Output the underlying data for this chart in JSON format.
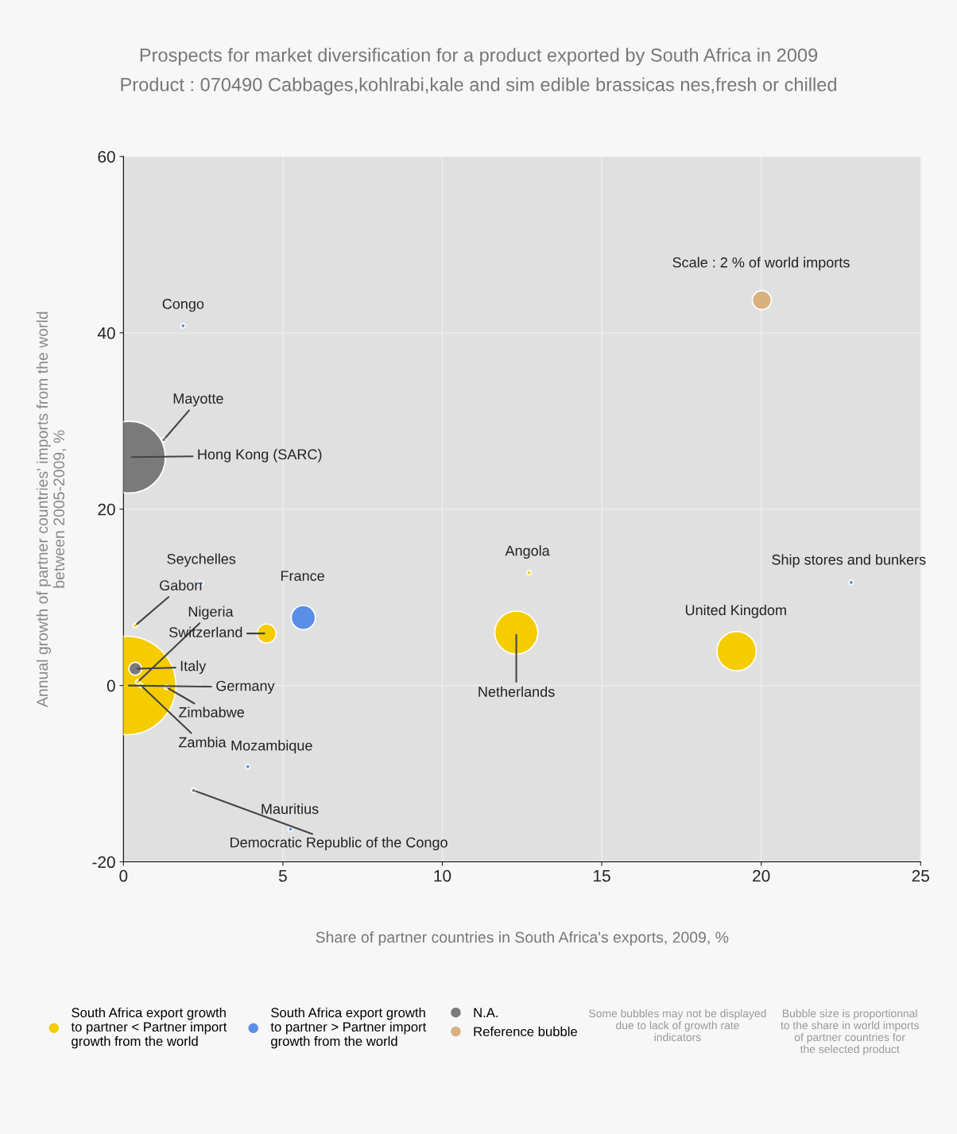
{
  "chart_data": {
    "type": "bubble",
    "title": "Prospects for market diversification for a product exported by South Africa in 2009",
    "subtitle": "Product : 070490 Cabbages,kohlrabi,kale and sim edible brassicas nes,fresh or chilled",
    "xlabel": "Share of partner countries in South Africa's exports, 2009, %",
    "ylabel": "Annual growth of partner countries' imports from the world\nbetween 2005-2009, %",
    "xlim": [
      0,
      25
    ],
    "xticks": [
      0,
      5,
      10,
      15,
      20,
      25
    ],
    "ylim": [
      -20,
      60
    ],
    "yticks": [
      -20,
      0,
      20,
      40,
      60
    ],
    "grid": true,
    "legend": "bottom",
    "marker": "circle",
    "series": [
      {
        "name": "South Africa export growth\nto partner < Partner import\ngrowth from the world",
        "color": "#f5cc00",
        "x": [
          0.1,
          0.45,
          0.55,
          1.35,
          0.37,
          4.49,
          12.32,
          19.23,
          12.72
        ],
        "values": [
          0,
          0.4,
          0,
          -0.2,
          6.8,
          5.9,
          6.0,
          3.9,
          12.8
        ],
        "sizes": [
          1,
          0.002,
          0.002,
          0.002,
          0.002,
          0.037,
          0.19,
          0.16,
          0.002
        ]
      },
      {
        "name": "South Africa export growth\nto partner > Partner import\ngrowth from the world",
        "color": "#5b8ee6",
        "x": [
          1.87,
          2.44,
          5.64,
          3.9,
          5.24,
          22.82
        ],
        "values": [
          40.8,
          11.6,
          7.7,
          -9.2,
          -16.3,
          11.7
        ],
        "sizes": [
          0.002,
          0.002,
          0.06,
          0.002,
          0.002,
          0.002
        ]
      },
      {
        "name": "N.A.",
        "color": "#7a7a7a",
        "x": [
          0.19,
          0.37,
          1.27,
          2.2
        ],
        "values": [
          25.9,
          1.9,
          27.9,
          -11.9
        ],
        "sizes": [
          0.53,
          0.017,
          0.002,
          0.002
        ]
      },
      {
        "name": "Reference bubble",
        "color": "#d9b07f",
        "x": [
          20.02
        ],
        "values": [
          43.7
        ],
        "sizes": [
          0.037
        ]
      }
    ],
    "annotations": [
      {
        "text": "Congo",
        "x": 1.87,
        "y": 40.8
      },
      {
        "text": "Mayotte",
        "x": 1.27,
        "y": 27.9
      },
      {
        "text": "Hong Kong (SARC)",
        "x": 0.19,
        "y": 25.9
      },
      {
        "text": "Seychelles",
        "x": 2.44,
        "y": 11.6
      },
      {
        "text": "Gabon",
        "x": 0.37,
        "y": 6.8
      },
      {
        "text": "France",
        "x": 5.64,
        "y": 7.7
      },
      {
        "text": "Nigeria",
        "x": 0.45,
        "y": 0.4
      },
      {
        "text": "Switzerland",
        "x": 4.49,
        "y": 5.9
      },
      {
        "text": "Italy",
        "x": 0.37,
        "y": 1.9
      },
      {
        "text": "Germany",
        "x": 0.1,
        "y": 0
      },
      {
        "text": "Zimbabwe",
        "x": 1.35,
        "y": -0.2
      },
      {
        "text": "Zambia",
        "x": 0.55,
        "y": 0
      },
      {
        "text": "Mozambique",
        "x": 3.9,
        "y": -9.2
      },
      {
        "text": "Mauritius",
        "x": 5.24,
        "y": -16.3
      },
      {
        "text": "Democratic Republic of the Congo",
        "x": 2.2,
        "y": -11.9
      },
      {
        "text": "Angola",
        "x": 12.72,
        "y": 12.8
      },
      {
        "text": "Netherlands",
        "x": 12.32,
        "y": 6.0
      },
      {
        "text": "United Kingdom",
        "x": 19.23,
        "y": 3.9
      },
      {
        "text": "Ship stores and bunkers",
        "x": 22.82,
        "y": 11.7
      },
      {
        "text": "Scale : 2 % of world imports",
        "x": 20.02,
        "y": 43.7
      },
      "Some bubbles may not be displayed\ndue to lack of growth rate\nindicators",
      "Bubble size is proportionnal\nto the share in world imports\nof partner countries for\nthe selected product"
    ]
  }
}
